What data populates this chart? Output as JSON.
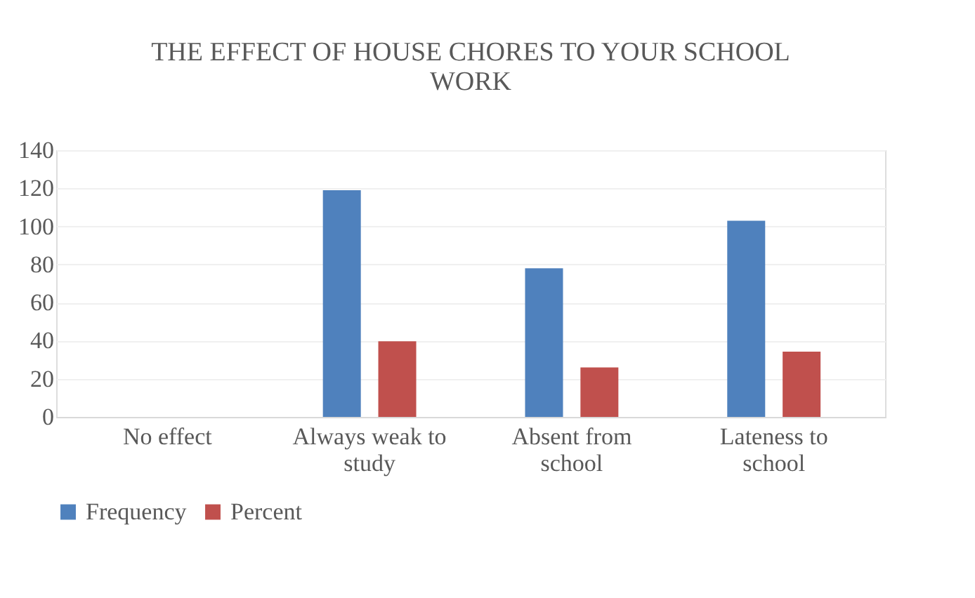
{
  "chart_data": {
    "type": "bar",
    "title": "THE EFFECT OF HOUSE CHORES TO YOUR SCHOOL WORK",
    "categories": [
      "No effect",
      "Always weak to study",
      "Absent from school",
      "Lateness to school"
    ],
    "series": [
      {
        "name": "Frequency",
        "color": "#4f81bd",
        "values": [
          0,
          119,
          78,
          103
        ]
      },
      {
        "name": "Percent",
        "color": "#c0504d",
        "values": [
          0,
          39.7,
          26,
          34.3
        ]
      }
    ],
    "ylim": [
      0,
      140
    ],
    "yticks": [
      0,
      20,
      40,
      60,
      80,
      100,
      120,
      140
    ],
    "grid": "y",
    "legend": "bottom"
  }
}
